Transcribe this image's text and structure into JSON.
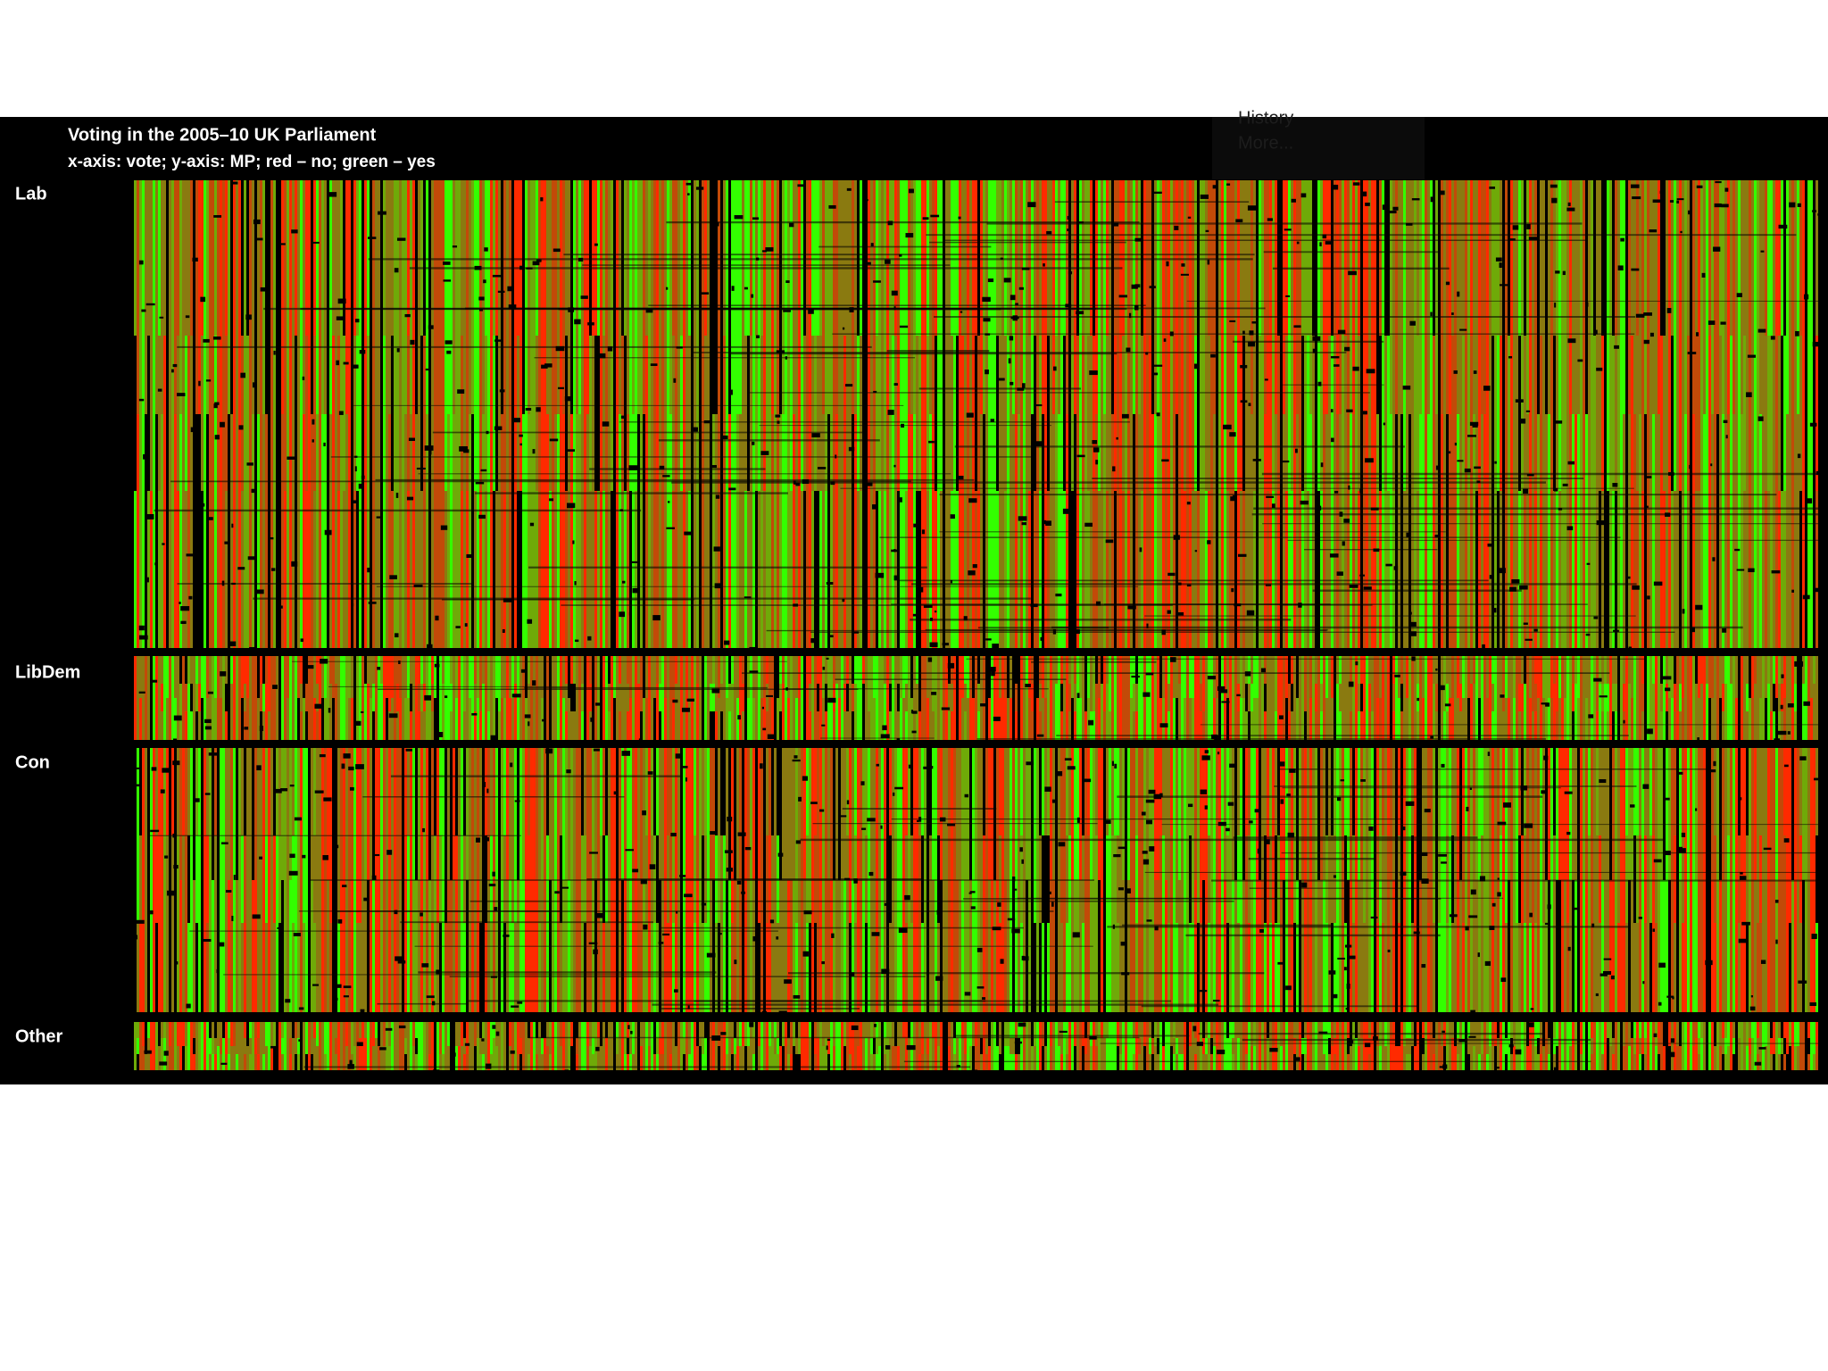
{
  "header": {
    "title": "Voting in the 2005–10 UK Parliament",
    "subtitle": "x-axis: vote; y-axis: MP; red – no; green – yes"
  },
  "menu": [
    "History",
    "More..."
  ],
  "groups": [
    {
      "label": "Lab"
    },
    {
      "label": "LibDem"
    },
    {
      "label": "Con"
    },
    {
      "label": "Other"
    }
  ]
}
